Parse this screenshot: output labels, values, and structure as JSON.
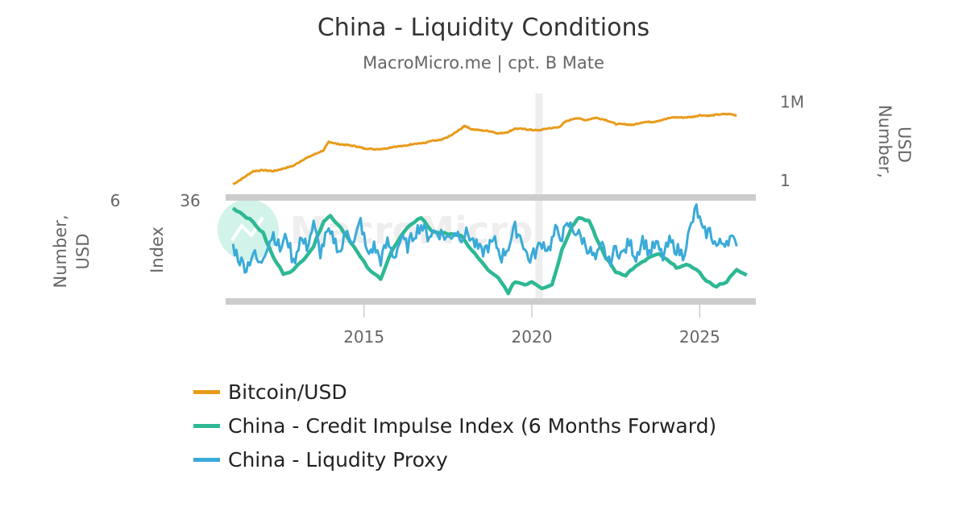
{
  "chart_data": {
    "type": "line",
    "title": "China - Liquidity Conditions",
    "subtitle": "MacroMicro.me | cpt. B Mate",
    "watermark": "MacroMicro",
    "x_range": [
      2011.0,
      2026.6
    ],
    "x_ticks": [
      {
        "value": 2015,
        "label": "2015"
      },
      {
        "value": 2020,
        "label": "2020"
      },
      {
        "value": 2025,
        "label": "2025"
      }
    ],
    "highlight_x": 2020.2,
    "panels": [
      {
        "name": "top",
        "scale": "log",
        "ylim": [
          0.1,
          10000000
        ],
        "right_ticks": [
          {
            "value": 1000000,
            "label": "1M"
          },
          {
            "value": 1,
            "label": "1"
          }
        ],
        "right_axis_title": [
          "Number,",
          "USD"
        ]
      },
      {
        "name": "bottom",
        "green_range": [
          -20,
          40
        ],
        "blue_range": [
          0,
          9
        ],
        "left_ticks": {
          "blue_axis_top": "6",
          "green_axis_top": "36"
        },
        "left_axis_titles": {
          "blue_axis": [
            "Number,",
            "USD"
          ],
          "green_axis": [
            "Index"
          ]
        }
      }
    ],
    "series": [
      {
        "name": "Bitcoin/USD",
        "panel": "top",
        "color": "#e89b1a",
        "x": [
          2011.1,
          2011.4,
          2011.7,
          2012.0,
          2012.3,
          2012.6,
          2012.9,
          2013.2,
          2013.5,
          2013.8,
          2013.95,
          2014.2,
          2014.5,
          2014.8,
          2015.0,
          2015.3,
          2015.6,
          2015.9,
          2016.2,
          2016.5,
          2016.8,
          2017.0,
          2017.3,
          2017.6,
          2017.9,
          2018.0,
          2018.2,
          2018.5,
          2018.8,
          2019.0,
          2019.3,
          2019.5,
          2019.8,
          2020.0,
          2020.2,
          2020.5,
          2020.8,
          2021.0,
          2021.3,
          2021.6,
          2021.9,
          2022.2,
          2022.5,
          2022.8,
          2023.0,
          2023.3,
          2023.6,
          2023.9,
          2024.2,
          2024.5,
          2024.8,
          2025.0,
          2025.3,
          2025.6,
          2025.9,
          2026.1
        ],
        "values": [
          0.5,
          1.5,
          5,
          6,
          5,
          8,
          13,
          40,
          90,
          200,
          900,
          600,
          500,
          380,
          280,
          240,
          260,
          380,
          420,
          650,
          700,
          1000,
          1200,
          2700,
          9000,
          15000,
          8000,
          6500,
          5500,
          3700,
          5000,
          9000,
          8000,
          7000,
          6500,
          9500,
          11000,
          30000,
          58000,
          40000,
          60000,
          42000,
          20000,
          19000,
          17000,
          28000,
          29000,
          42000,
          65000,
          62000,
          70000,
          95000,
          85000,
          110000,
          115000,
          90000
        ]
      },
      {
        "name": "China - Credit Impulse Index (6 Months Forward)",
        "panel": "bottom",
        "color": "#2eb895",
        "x": [
          2011.1,
          2011.4,
          2011.7,
          2012.0,
          2012.3,
          2012.6,
          2012.9,
          2013.2,
          2013.5,
          2013.8,
          2014.0,
          2014.3,
          2014.6,
          2014.9,
          2015.2,
          2015.5,
          2015.8,
          2016.1,
          2016.4,
          2016.7,
          2017.0,
          2017.3,
          2017.6,
          2017.9,
          2018.2,
          2018.5,
          2018.8,
          2019.0,
          2019.3,
          2019.5,
          2019.8,
          2020.0,
          2020.3,
          2020.6,
          2020.9,
          2021.2,
          2021.4,
          2021.7,
          2021.9,
          2022.2,
          2022.5,
          2022.8,
          2023.0,
          2023.3,
          2023.5,
          2023.8,
          2024.1,
          2024.3,
          2024.6,
          2024.9,
          2025.2,
          2025.5,
          2025.8,
          2026.1,
          2026.4
        ],
        "values": [
          36,
          32,
          27,
          20,
          5,
          -5,
          -3,
          4,
          12,
          28,
          31,
          24,
          15,
          5,
          -4,
          -8,
          8,
          18,
          26,
          30,
          22,
          20,
          20,
          18,
          10,
          2,
          -5,
          -8,
          -17,
          -10,
          -12,
          -10,
          -14,
          -12,
          10,
          25,
          30,
          28,
          18,
          5,
          -4,
          -6,
          -2,
          2,
          5,
          7,
          2,
          -1,
          0,
          -2,
          -10,
          -13,
          -10,
          -3,
          -6
        ]
      },
      {
        "name": "China - Liqudity Proxy",
        "panel": "bottom",
        "color": "#3aaad8",
        "x": [
          2011.1,
          2011.3,
          2011.5,
          2011.7,
          2011.9,
          2012.1,
          2012.3,
          2012.5,
          2012.7,
          2012.9,
          2013.1,
          2013.3,
          2013.5,
          2013.7,
          2013.9,
          2014.1,
          2014.3,
          2014.5,
          2014.7,
          2014.9,
          2015.1,
          2015.3,
          2015.5,
          2015.7,
          2015.9,
          2016.1,
          2016.3,
          2016.5,
          2016.7,
          2016.9,
          2017.1,
          2017.3,
          2017.5,
          2017.7,
          2017.9,
          2018.1,
          2018.3,
          2018.5,
          2018.7,
          2018.9,
          2019.1,
          2019.3,
          2019.5,
          2019.7,
          2019.9,
          2020.1,
          2020.3,
          2020.5,
          2020.7,
          2020.9,
          2021.1,
          2021.3,
          2021.5,
          2021.7,
          2021.9,
          2022.1,
          2022.3,
          2022.5,
          2022.7,
          2022.9,
          2023.1,
          2023.3,
          2023.5,
          2023.7,
          2023.9,
          2024.1,
          2024.3,
          2024.5,
          2024.7,
          2024.9,
          2025.1,
          2025.3,
          2025.5,
          2025.7,
          2025.9,
          2026.1
        ],
        "values": [
          4.8,
          3.5,
          2.8,
          4.2,
          3.0,
          4.8,
          6.0,
          4.5,
          5.8,
          3.2,
          5.5,
          4.8,
          6.8,
          4.2,
          6.0,
          5.5,
          4.2,
          6.5,
          5.0,
          7.2,
          4.0,
          4.8,
          3.5,
          5.2,
          3.8,
          5.5,
          4.8,
          6.0,
          6.8,
          5.8,
          6.2,
          6.0,
          5.5,
          6.2,
          5.8,
          6.0,
          5.0,
          4.2,
          4.8,
          5.2,
          3.8,
          4.8,
          6.5,
          5.5,
          3.5,
          4.2,
          5.2,
          4.5,
          6.2,
          5.8,
          6.8,
          6.2,
          5.5,
          4.5,
          3.5,
          4.8,
          3.2,
          4.6,
          4.0,
          5.2,
          3.8,
          5.5,
          4.2,
          5.0,
          3.8,
          5.2,
          4.6,
          4.0,
          6.2,
          8.4,
          6.0,
          6.2,
          4.8,
          5.2,
          5.6,
          4.8
        ]
      }
    ],
    "legend": {
      "placement": "bottom-center",
      "entries": [
        {
          "label": "Bitcoin/USD",
          "color": "#e89b1a"
        },
        {
          "label": "China - Credit Impulse Index (6 Months Forward)",
          "color": "#2eb895"
        },
        {
          "label": "China - Liqudity Proxy",
          "color": "#3aaad8"
        }
      ]
    }
  }
}
